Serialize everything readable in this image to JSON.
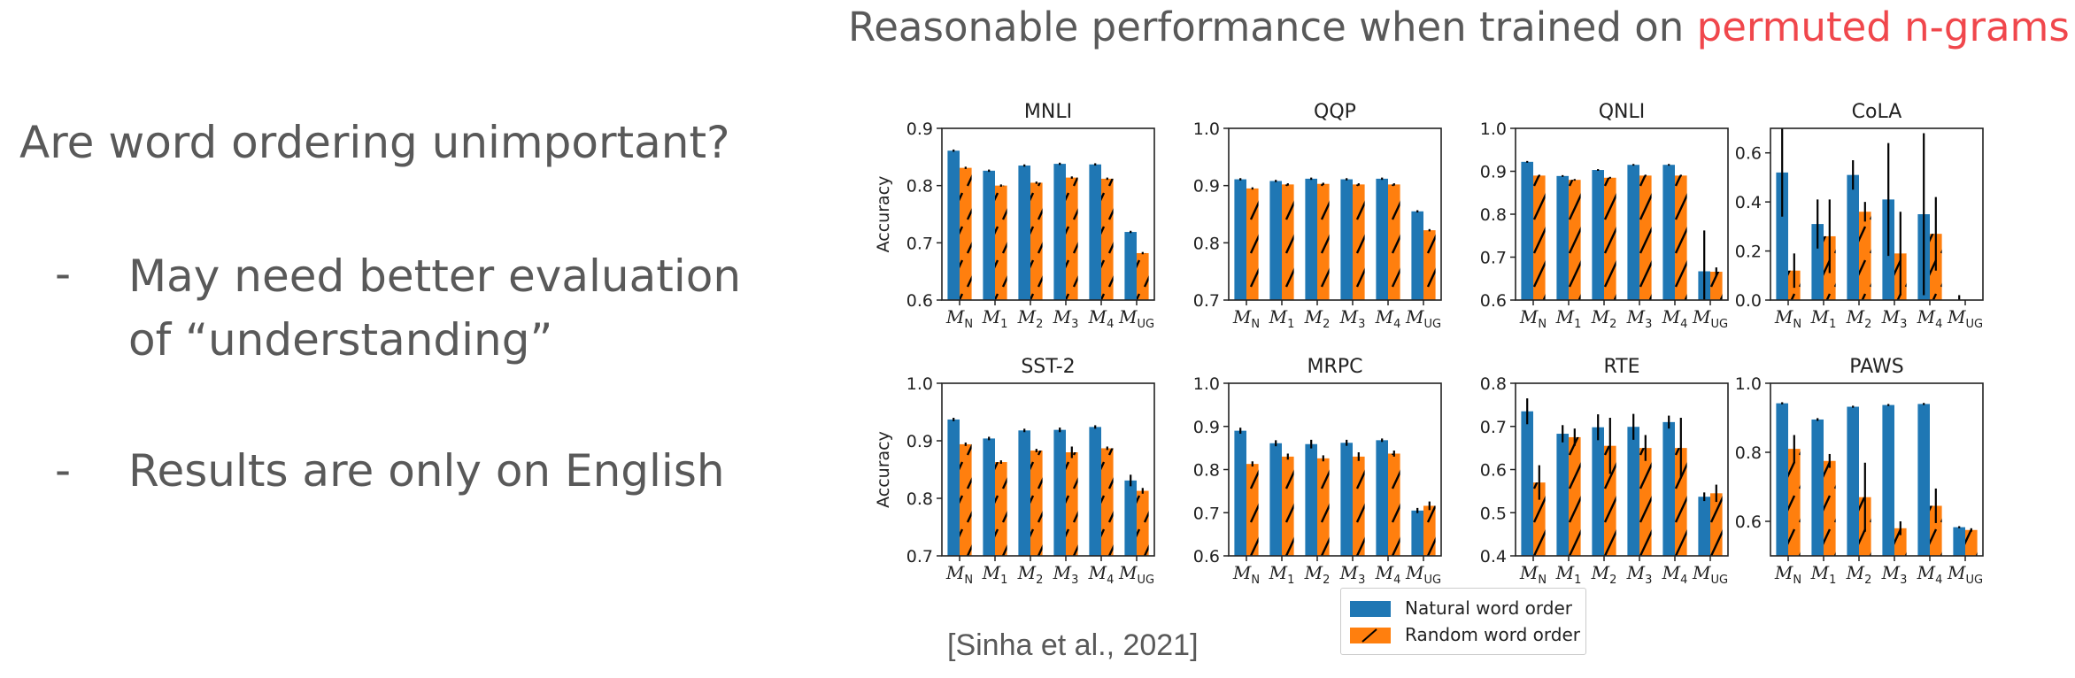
{
  "slide": {
    "title_prefix": "Reasonable performance when trained on ",
    "title_highlight": "permuted n-grams",
    "title_suffix": "!",
    "question": "Are word ordering unimportant?",
    "bullets": [
      {
        "dash": "-",
        "text": "May need better evaluation\nof “understanding”"
      },
      {
        "dash": "-",
        "text": "Results are only on English"
      }
    ],
    "citation": "[Sinha et al., 2021]"
  },
  "colors": {
    "natural": "#1f77b4",
    "random": "#ff7f0e",
    "text": "#595959",
    "highlight": "#f0474c"
  },
  "chart_data": [
    {
      "type": "bar",
      "title": "MNLI",
      "ylabel": "Accuracy",
      "ylim": [
        0.6,
        0.9
      ],
      "yticks": [
        "0.6",
        "0.7",
        "0.8",
        "0.9"
      ],
      "categories": [
        "M_N",
        "M_1",
        "M_2",
        "M_3",
        "M_4",
        "M_UG"
      ],
      "series": [
        {
          "name": "Natural word order",
          "values": [
            0.861,
            0.826,
            0.835,
            0.838,
            0.837,
            0.719
          ],
          "errors": [
            0.002,
            0.002,
            0.002,
            0.002,
            0.002,
            0.002
          ]
        },
        {
          "name": "Random word order",
          "values": [
            0.831,
            0.8,
            0.805,
            0.814,
            0.812,
            0.682
          ],
          "errors": [
            0.002,
            0.002,
            0.002,
            0.002,
            0.002,
            0.002
          ]
        }
      ]
    },
    {
      "type": "bar",
      "title": "QQP",
      "ylabel": "",
      "ylim": [
        0.7,
        1.0
      ],
      "yticks": [
        "0.7",
        "0.8",
        "0.9",
        "1.0"
      ],
      "categories": [
        "M_N",
        "M_1",
        "M_2",
        "M_3",
        "M_4",
        "M_UG"
      ],
      "series": [
        {
          "name": "Natural word order",
          "values": [
            0.911,
            0.908,
            0.912,
            0.911,
            0.912,
            0.855
          ],
          "errors": [
            0.002,
            0.002,
            0.002,
            0.002,
            0.002,
            0.002
          ]
        },
        {
          "name": "Random word order",
          "values": [
            0.895,
            0.902,
            0.903,
            0.902,
            0.902,
            0.822
          ],
          "errors": [
            0.002,
            0.002,
            0.002,
            0.002,
            0.002,
            0.002
          ]
        }
      ]
    },
    {
      "type": "bar",
      "title": "QNLI",
      "ylabel": "",
      "ylim": [
        0.6,
        1.0
      ],
      "yticks": [
        "0.6",
        "0.7",
        "0.8",
        "0.9",
        "1.0"
      ],
      "categories": [
        "M_N",
        "M_1",
        "M_2",
        "M_3",
        "M_4",
        "M_UG"
      ],
      "series": [
        {
          "name": "Natural word order",
          "values": [
            0.922,
            0.889,
            0.903,
            0.915,
            0.915,
            0.667
          ],
          "errors": [
            0.002,
            0.002,
            0.002,
            0.002,
            0.002,
            0.095
          ]
        },
        {
          "name": "Random word order",
          "values": [
            0.89,
            0.88,
            0.885,
            0.89,
            0.89,
            0.666
          ],
          "errors": [
            0.002,
            0.002,
            0.002,
            0.002,
            0.002,
            0.01
          ]
        }
      ]
    },
    {
      "type": "bar",
      "title": "CoLA",
      "ylabel": "",
      "ylim": [
        0.0,
        0.7
      ],
      "yticks": [
        "0.0",
        "0.2",
        "0.4",
        "0.6"
      ],
      "categories": [
        "M_N",
        "M_1",
        "M_2",
        "M_3",
        "M_4",
        "M_UG"
      ],
      "series": [
        {
          "name": "Natural word order",
          "values": [
            0.52,
            0.31,
            0.51,
            0.41,
            0.35,
            0.0
          ],
          "errors": [
            0.18,
            0.1,
            0.06,
            0.23,
            0.33,
            0.02
          ]
        },
        {
          "name": "Random word order",
          "values": [
            0.12,
            0.26,
            0.36,
            0.19,
            0.27,
            0.0
          ],
          "errors": [
            0.07,
            0.15,
            0.04,
            0.17,
            0.15,
            0.0
          ]
        }
      ]
    },
    {
      "type": "bar",
      "title": "SST-2",
      "ylabel": "Accuracy",
      "ylim": [
        0.7,
        1.0
      ],
      "yticks": [
        "0.7",
        "0.8",
        "0.9",
        "1.0"
      ],
      "categories": [
        "M_N",
        "M_1",
        "M_2",
        "M_3",
        "M_4",
        "M_UG"
      ],
      "series": [
        {
          "name": "Natural word order",
          "values": [
            0.937,
            0.904,
            0.918,
            0.919,
            0.924,
            0.831
          ],
          "errors": [
            0.003,
            0.003,
            0.003,
            0.004,
            0.003,
            0.01
          ]
        },
        {
          "name": "Random word order",
          "values": [
            0.894,
            0.863,
            0.883,
            0.88,
            0.887,
            0.813
          ],
          "errors": [
            0.003,
            0.003,
            0.003,
            0.01,
            0.003,
            0.005
          ]
        }
      ]
    },
    {
      "type": "bar",
      "title": "MRPC",
      "ylabel": "",
      "ylim": [
        0.6,
        1.0
      ],
      "yticks": [
        "0.6",
        "0.7",
        "0.8",
        "0.9",
        "1.0"
      ],
      "categories": [
        "M_N",
        "M_1",
        "M_2",
        "M_3",
        "M_4",
        "M_UG"
      ],
      "series": [
        {
          "name": "Natural word order",
          "values": [
            0.89,
            0.861,
            0.859,
            0.862,
            0.868,
            0.705
          ],
          "errors": [
            0.007,
            0.007,
            0.01,
            0.007,
            0.004,
            0.006
          ]
        },
        {
          "name": "Random word order",
          "values": [
            0.813,
            0.83,
            0.826,
            0.83,
            0.837,
            0.716
          ],
          "errors": [
            0.006,
            0.007,
            0.007,
            0.01,
            0.007,
            0.01
          ]
        }
      ]
    },
    {
      "type": "bar",
      "title": "RTE",
      "ylabel": "",
      "ylim": [
        0.4,
        0.8
      ],
      "yticks": [
        "0.4",
        "0.5",
        "0.6",
        "0.7",
        "0.8"
      ],
      "categories": [
        "M_N",
        "M_1",
        "M_2",
        "M_3",
        "M_4",
        "M_UG"
      ],
      "series": [
        {
          "name": "Natural word order",
          "values": [
            0.735,
            0.683,
            0.698,
            0.699,
            0.71,
            0.537
          ],
          "errors": [
            0.03,
            0.02,
            0.03,
            0.03,
            0.015,
            0.01
          ]
        },
        {
          "name": "Random word order",
          "values": [
            0.57,
            0.675,
            0.655,
            0.65,
            0.65,
            0.545
          ],
          "errors": [
            0.04,
            0.02,
            0.065,
            0.03,
            0.07,
            0.02
          ]
        }
      ]
    },
    {
      "type": "bar",
      "title": "PAWS",
      "ylabel": "",
      "ylim": [
        0.5,
        1.0
      ],
      "yticks": [
        "0.6",
        "0.8",
        "1.0"
      ],
      "categories": [
        "M_N",
        "M_1",
        "M_2",
        "M_3",
        "M_4",
        "M_UG"
      ],
      "series": [
        {
          "name": "Natural word order",
          "values": [
            0.942,
            0.895,
            0.932,
            0.937,
            0.94,
            0.583
          ],
          "errors": [
            0.003,
            0.004,
            0.003,
            0.003,
            0.003,
            0.003
          ]
        },
        {
          "name": "Random word order",
          "values": [
            0.81,
            0.775,
            0.67,
            0.58,
            0.645,
            0.575
          ],
          "errors": [
            0.04,
            0.02,
            0.1,
            0.02,
            0.05,
            0.005
          ]
        }
      ]
    }
  ],
  "legend": {
    "position": "bottom-center",
    "items": [
      "Natural word order",
      "Random word order"
    ]
  }
}
